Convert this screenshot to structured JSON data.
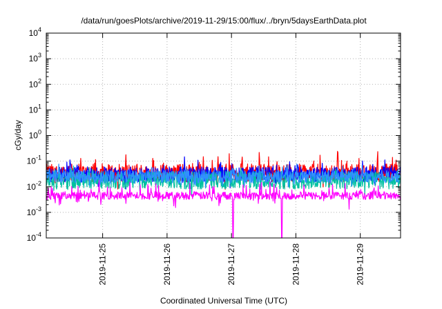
{
  "chart_data": {
    "type": "line",
    "title": "/data/run/goesPlots/archive/2019-11-29/15:00/flux/../bryn/5daysEarthData.plot",
    "xlabel": "Coordinated Universal Time (UTC)",
    "ylabel": "cGy/day",
    "y_scale": "log",
    "ylim": [
      0.0001,
      10000
    ],
    "y_ticks": [
      {
        "value": 0.0001,
        "base": "10",
        "exp": "-4"
      },
      {
        "value": 0.001,
        "base": "10",
        "exp": "-3"
      },
      {
        "value": 0.01,
        "base": "10",
        "exp": "-2"
      },
      {
        "value": 0.1,
        "base": "10",
        "exp": "-1"
      },
      {
        "value": 1,
        "base": "10",
        "exp": "0"
      },
      {
        "value": 10,
        "base": "10",
        "exp": "1"
      },
      {
        "value": 100,
        "base": "10",
        "exp": "2"
      },
      {
        "value": 1000,
        "base": "10",
        "exp": "3"
      },
      {
        "value": 10000,
        "base": "10",
        "exp": "4"
      }
    ],
    "xlim": [
      "2019-11-24T03:00",
      "2019-11-29T15:00"
    ],
    "x_ticks": [
      "2019-11-25",
      "2019-11-26",
      "2019-11-27",
      "2019-11-28",
      "2019-11-29"
    ],
    "grid": true,
    "series": [
      {
        "color": "#ff0000",
        "typical_value": 0.035,
        "noise": 0.35,
        "spike": 0.6
      },
      {
        "color": "#0000ff",
        "typical_value": 0.03,
        "noise": 0.3,
        "spike": 0.4
      },
      {
        "color": "#00c0a0",
        "typical_value": 0.018,
        "noise": 0.35,
        "spike": 0.3
      },
      {
        "color": "#3090ff",
        "typical_value": 0.025,
        "noise": 0.25,
        "spike": 0.3
      },
      {
        "color": "#ff00ff",
        "typical_value": 0.0045,
        "noise": 0.15,
        "spike": 0.5,
        "dropouts": [
          "2019-11-27T00:30",
          "2019-11-27T00:35",
          "2019-11-27T18:40",
          "2019-11-27T18:45"
        ]
      }
    ]
  }
}
